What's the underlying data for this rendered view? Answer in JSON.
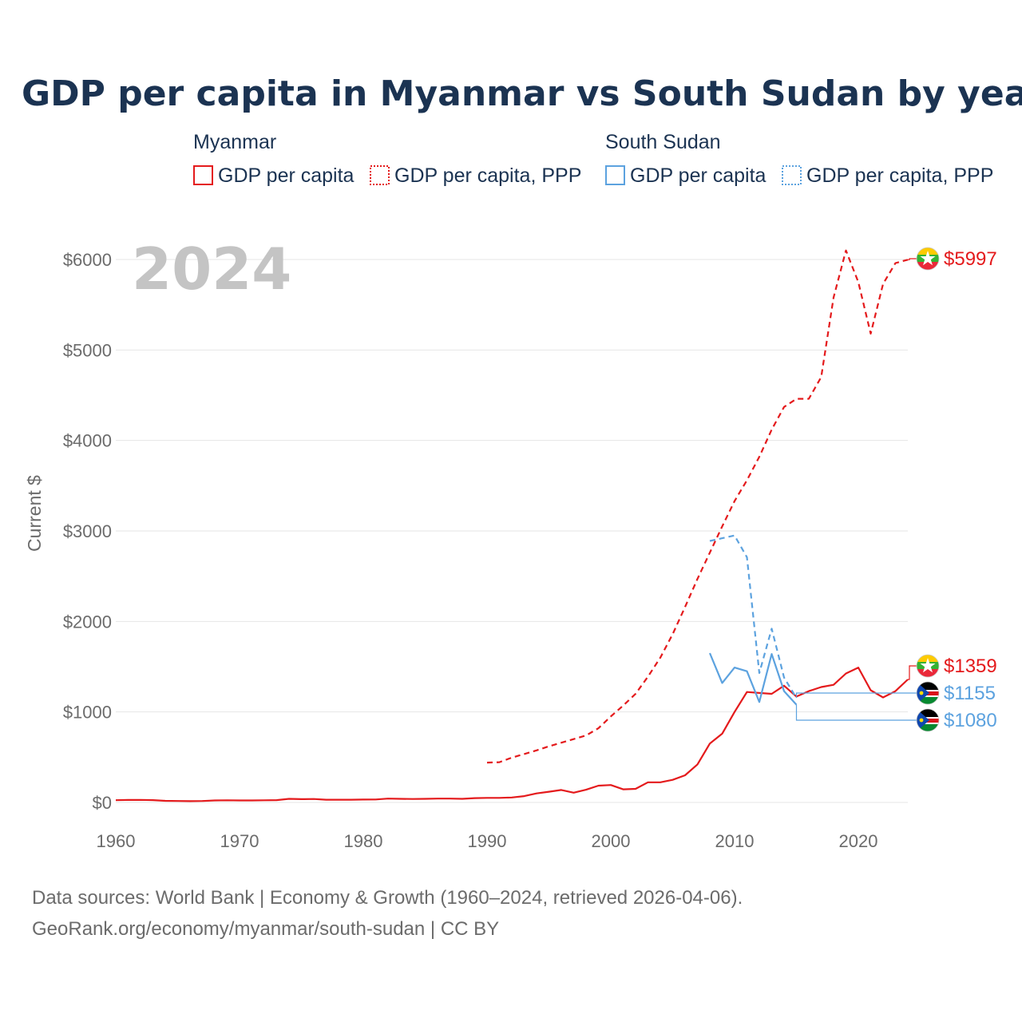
{
  "chart_data": {
    "type": "line",
    "title": "GDP per capita in Myanmar vs South Sudan by year",
    "year_label": "2024",
    "ylabel": "Current $",
    "xlim": [
      1960,
      2024
    ],
    "ylim": [
      0,
      6000
    ],
    "x_ticks": [
      1960,
      1970,
      1980,
      1990,
      2000,
      2010,
      2020
    ],
    "x_tick_labels": [
      "1960",
      "1970",
      "1980",
      "1990",
      "2000",
      "2010",
      "2020"
    ],
    "y_ticks": [
      0,
      1000,
      2000,
      3000,
      4000,
      5000,
      6000
    ],
    "y_tick_labels": [
      "$0",
      "$1000",
      "$2000",
      "$3000",
      "$4000",
      "$5000",
      "$6000"
    ],
    "grid": true,
    "legend": {
      "placement": "top",
      "groups": [
        {
          "name": "Myanmar",
          "color": "#e41a1c",
          "items": [
            "GDP per capita",
            "GDP per capita, PPP"
          ]
        },
        {
          "name": "South Sudan",
          "color": "#5ca2df",
          "items": [
            "GDP per capita",
            "GDP per capita, PPP"
          ]
        }
      ]
    },
    "series": [
      {
        "name": "Myanmar GDP per capita",
        "country": "Myanmar",
        "style": "solid",
        "color": "#e41a1c",
        "x": [
          1960,
          1961,
          1962,
          1963,
          1964,
          1965,
          1966,
          1967,
          1968,
          1969,
          1970,
          1971,
          1972,
          1973,
          1974,
          1975,
          1976,
          1977,
          1978,
          1979,
          1980,
          1981,
          1982,
          1983,
          1984,
          1985,
          1986,
          1987,
          1988,
          1989,
          1990,
          1991,
          1992,
          1993,
          1994,
          1995,
          1996,
          1997,
          1998,
          1999,
          2000,
          2001,
          2002,
          2003,
          2004,
          2005,
          2006,
          2007,
          2008,
          2009,
          2010,
          2011,
          2012,
          2013,
          2014,
          2015,
          2016,
          2017,
          2018,
          2019,
          2020,
          2021,
          2022,
          2023,
          2024
        ],
        "values": [
          25,
          27,
          28,
          26,
          18,
          16,
          14,
          16,
          22,
          24,
          22,
          22,
          24,
          26,
          40,
          36,
          38,
          30,
          30,
          30,
          32,
          33,
          42,
          40,
          38,
          40,
          42,
          42,
          40,
          48,
          50,
          50,
          55,
          70,
          100,
          118,
          138,
          108,
          140,
          185,
          192,
          145,
          150,
          222,
          222,
          250,
          300,
          420,
          650,
          760,
          1000,
          1220,
          1210,
          1200,
          1290,
          1170,
          1230,
          1275,
          1300,
          1425,
          1490,
          1240,
          1160,
          1230,
          1359
        ],
        "end_label": "$1359"
      },
      {
        "name": "Myanmar GDP per capita, PPP",
        "country": "Myanmar",
        "style": "dashed",
        "color": "#e41a1c",
        "x": [
          1990,
          1991,
          1992,
          1993,
          1994,
          1995,
          1996,
          1997,
          1998,
          1999,
          2000,
          2001,
          2002,
          2003,
          2004,
          2005,
          2006,
          2007,
          2008,
          2009,
          2010,
          2011,
          2012,
          2013,
          2014,
          2015,
          2016,
          2017,
          2018,
          2019,
          2020,
          2021,
          2022,
          2023,
          2024
        ],
        "values": [
          440,
          445,
          495,
          535,
          575,
          620,
          660,
          700,
          740,
          820,
          950,
          1070,
          1200,
          1390,
          1600,
          1860,
          2160,
          2470,
          2760,
          3050,
          3330,
          3560,
          3820,
          4120,
          4370,
          4460,
          4460,
          4700,
          5580,
          6100,
          5750,
          5180,
          5730,
          5960,
          5997
        ],
        "end_label": "$5997"
      },
      {
        "name": "South Sudan GDP per capita",
        "country": "South Sudan",
        "style": "solid",
        "color": "#5ca2df",
        "x": [
          2008,
          2009,
          2010,
          2011,
          2012,
          2013,
          2014,
          2015
        ],
        "values": [
          1650,
          1320,
          1490,
          1450,
          1110,
          1640,
          1230,
          1080
        ],
        "end_label": "$1080"
      },
      {
        "name": "South Sudan GDP per capita, PPP",
        "country": "South Sudan",
        "style": "dashed",
        "color": "#5ca2df",
        "x": [
          2008,
          2009,
          2010,
          2011,
          2012,
          2013,
          2014,
          2015
        ],
        "values": [
          2890,
          2920,
          2950,
          2710,
          1430,
          1920,
          1380,
          1155
        ],
        "end_label": "$1155"
      }
    ]
  },
  "footer": {
    "source_line": "Data sources: World Bank | Economy & Growth (1960–2024, retrieved 2026-04-06).",
    "url_line": "GeoRank.org/economy/myanmar/south-sudan | CC BY"
  },
  "icons": {
    "myanmar_flag": "myanmar-flag-icon",
    "south_sudan_flag": "south-sudan-flag-icon"
  }
}
